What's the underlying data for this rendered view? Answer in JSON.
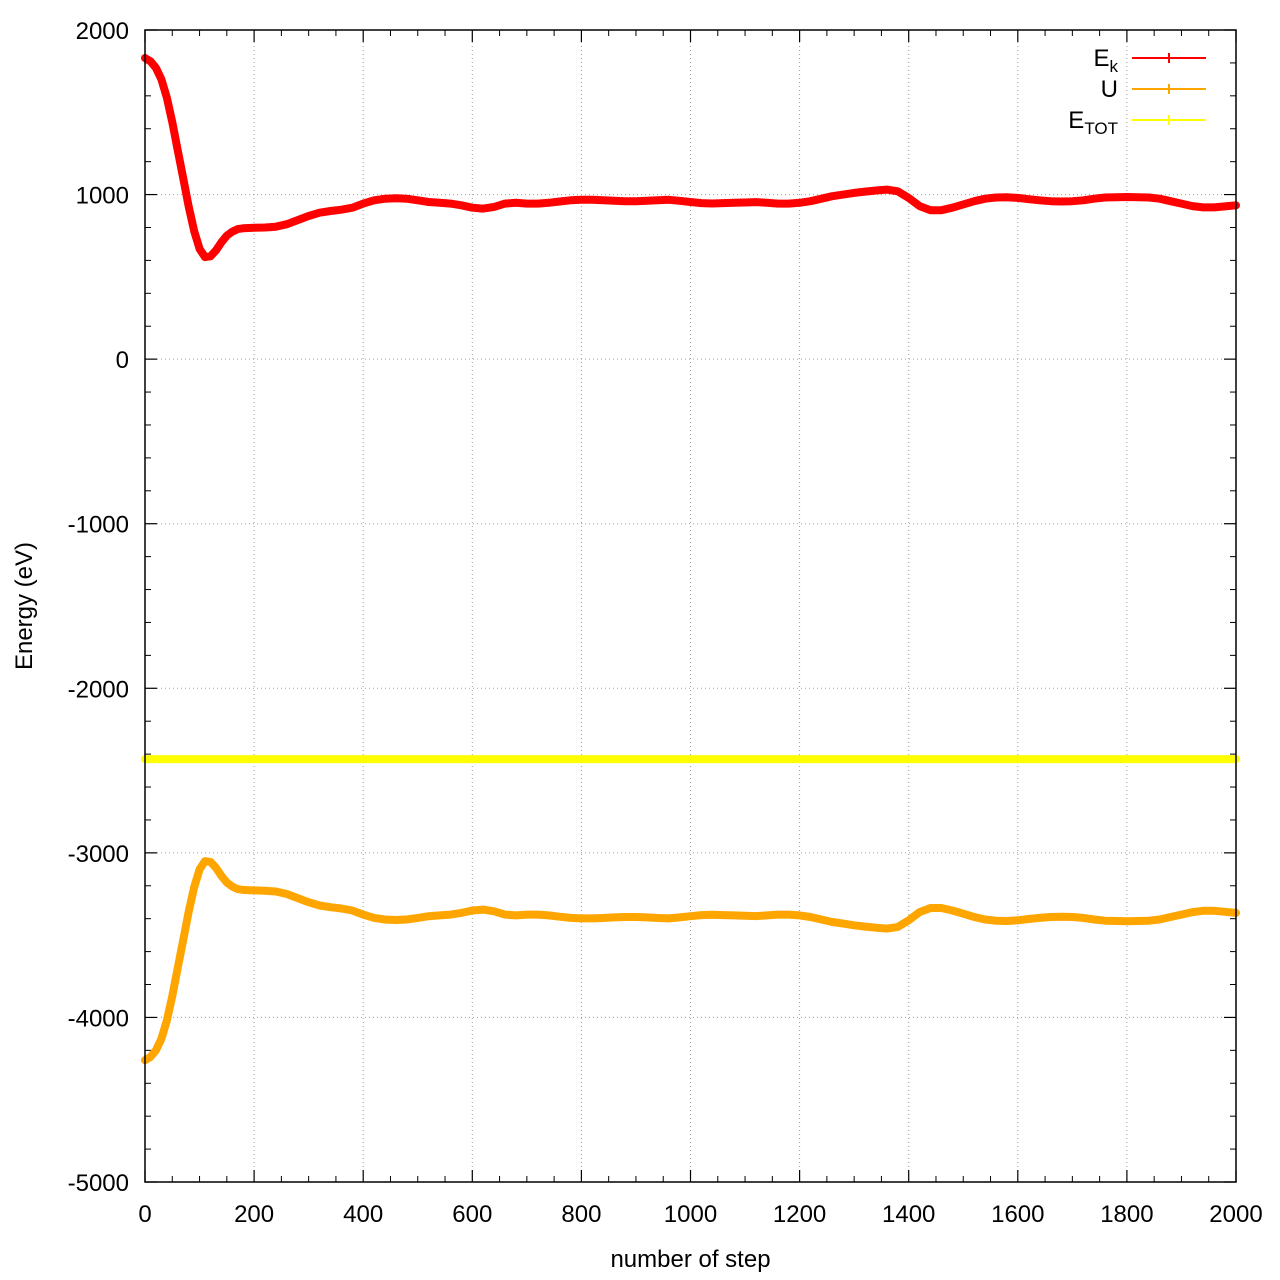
{
  "chart_data": {
    "type": "line",
    "title": "",
    "xlabel": "number of step",
    "ylabel": "Energy (eV)",
    "xlim": [
      0,
      2000
    ],
    "ylim": [
      -5000,
      2000
    ],
    "xticks": [
      0,
      200,
      400,
      600,
      800,
      1000,
      1200,
      1400,
      1600,
      1800,
      2000
    ],
    "yticks": [
      2000,
      1000,
      0,
      -1000,
      -2000,
      -3000,
      -4000,
      -5000
    ],
    "xtick_labels": [
      "0",
      "200",
      "400",
      "600",
      "800",
      "1000",
      "1200",
      "1400",
      "1600",
      "1800",
      "2000"
    ],
    "ytick_labels": [
      "2000",
      "1000",
      "0",
      "-1000",
      "-2000",
      "-3000",
      "-4000",
      "-5000"
    ],
    "grid": true,
    "legend_position": "top-right",
    "series": [
      {
        "name": "E_k",
        "legend_main": "E",
        "legend_sub": "k",
        "color": "#ff0000",
        "x": [
          0,
          10,
          20,
          30,
          40,
          50,
          60,
          70,
          80,
          90,
          100,
          110,
          120,
          130,
          140,
          150,
          160,
          170,
          180,
          190,
          200,
          220,
          240,
          260,
          280,
          300,
          320,
          340,
          360,
          380,
          400,
          420,
          440,
          460,
          480,
          500,
          520,
          540,
          560,
          580,
          600,
          620,
          640,
          660,
          680,
          700,
          720,
          740,
          760,
          780,
          800,
          820,
          840,
          860,
          880,
          900,
          920,
          940,
          960,
          980,
          1000,
          1020,
          1040,
          1060,
          1080,
          1100,
          1120,
          1140,
          1160,
          1180,
          1200,
          1220,
          1240,
          1260,
          1280,
          1300,
          1320,
          1340,
          1360,
          1380,
          1400,
          1420,
          1440,
          1460,
          1480,
          1500,
          1520,
          1540,
          1560,
          1580,
          1600,
          1620,
          1640,
          1660,
          1680,
          1700,
          1720,
          1740,
          1760,
          1780,
          1800,
          1820,
          1840,
          1860,
          1880,
          1900,
          1920,
          1940,
          1960,
          1980,
          2000
        ],
        "y": [
          1830,
          1810,
          1770,
          1700,
          1590,
          1440,
          1270,
          1100,
          930,
          780,
          670,
          620,
          625,
          660,
          710,
          750,
          775,
          790,
          795,
          797,
          798,
          800,
          805,
          820,
          845,
          870,
          890,
          900,
          908,
          920,
          945,
          965,
          975,
          978,
          975,
          965,
          955,
          950,
          945,
          935,
          920,
          915,
          925,
          945,
          950,
          945,
          945,
          950,
          958,
          965,
          968,
          968,
          966,
          962,
          960,
          960,
          962,
          966,
          968,
          962,
          955,
          948,
          946,
          948,
          950,
          952,
          954,
          950,
          945,
          945,
          950,
          960,
          975,
          990,
          1000,
          1010,
          1018,
          1025,
          1030,
          1020,
          980,
          930,
          905,
          905,
          920,
          940,
          960,
          975,
          982,
          984,
          980,
          972,
          965,
          960,
          958,
          960,
          965,
          975,
          982,
          984,
          985,
          984,
          982,
          975,
          960,
          945,
          930,
          922,
          922,
          928,
          935
        ]
      },
      {
        "name": "U",
        "legend_main": "U",
        "legend_sub": "",
        "color": "#ffa500",
        "x": [
          0,
          10,
          20,
          30,
          40,
          50,
          60,
          70,
          80,
          90,
          100,
          110,
          120,
          130,
          140,
          150,
          160,
          170,
          180,
          190,
          200,
          220,
          240,
          260,
          280,
          300,
          320,
          340,
          360,
          380,
          400,
          420,
          440,
          460,
          480,
          500,
          520,
          540,
          560,
          580,
          600,
          620,
          640,
          660,
          680,
          700,
          720,
          740,
          760,
          780,
          800,
          820,
          840,
          860,
          880,
          900,
          920,
          940,
          960,
          980,
          1000,
          1020,
          1040,
          1060,
          1080,
          1100,
          1120,
          1140,
          1160,
          1180,
          1200,
          1220,
          1240,
          1260,
          1280,
          1300,
          1320,
          1340,
          1360,
          1380,
          1400,
          1420,
          1440,
          1460,
          1480,
          1500,
          1520,
          1540,
          1560,
          1580,
          1600,
          1620,
          1640,
          1660,
          1680,
          1700,
          1720,
          1740,
          1760,
          1780,
          1800,
          1820,
          1840,
          1860,
          1880,
          1900,
          1920,
          1940,
          1960,
          1980,
          2000
        ],
        "y": [
          -4260,
          -4240,
          -4200,
          -4130,
          -4020,
          -3870,
          -3700,
          -3530,
          -3360,
          -3210,
          -3100,
          -3050,
          -3055,
          -3090,
          -3140,
          -3180,
          -3205,
          -3220,
          -3225,
          -3227,
          -3228,
          -3230,
          -3235,
          -3250,
          -3275,
          -3300,
          -3320,
          -3330,
          -3338,
          -3350,
          -3375,
          -3395,
          -3405,
          -3408,
          -3405,
          -3395,
          -3385,
          -3380,
          -3375,
          -3365,
          -3350,
          -3345,
          -3355,
          -3375,
          -3380,
          -3375,
          -3375,
          -3380,
          -3388,
          -3395,
          -3398,
          -3398,
          -3396,
          -3392,
          -3390,
          -3390,
          -3392,
          -3396,
          -3398,
          -3392,
          -3385,
          -3378,
          -3376,
          -3378,
          -3380,
          -3382,
          -3384,
          -3380,
          -3375,
          -3375,
          -3380,
          -3390,
          -3405,
          -3420,
          -3430,
          -3440,
          -3448,
          -3455,
          -3460,
          -3450,
          -3410,
          -3360,
          -3335,
          -3335,
          -3350,
          -3370,
          -3390,
          -3405,
          -3412,
          -3414,
          -3410,
          -3402,
          -3395,
          -3390,
          -3388,
          -3390,
          -3395,
          -3405,
          -3412,
          -3414,
          -3415,
          -3414,
          -3412,
          -3405,
          -3390,
          -3375,
          -3360,
          -3352,
          -3352,
          -3358,
          -3365
        ]
      },
      {
        "name": "E_TOT",
        "legend_main": "E",
        "legend_sub": "TOT",
        "color": "#ffff00",
        "x": [
          0,
          2000
        ],
        "y": [
          -2430,
          -2430
        ]
      }
    ]
  }
}
